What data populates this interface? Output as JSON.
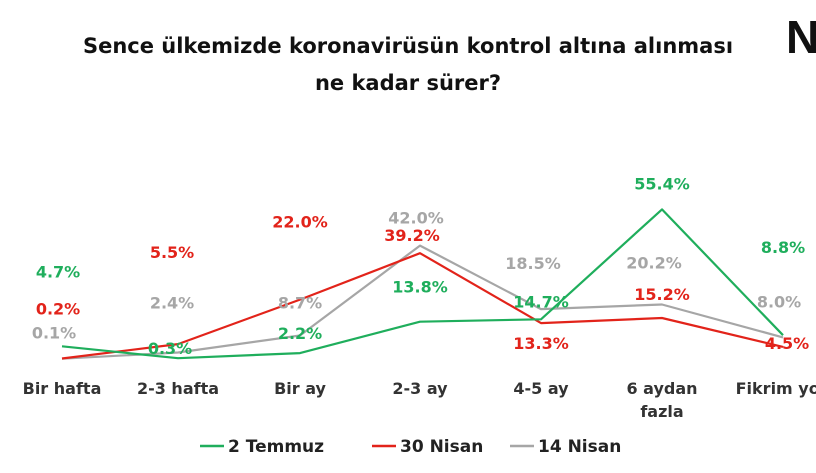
{
  "header": {
    "title_line1": "Sence ülkemizde koronavirüsün kontrol altına alınması",
    "title_line2": "ne kadar sürer?",
    "logo_text": "N"
  },
  "chart_data": {
    "type": "line",
    "title": "Sence ülkemizde koronavirüsün kontrol altına alınması ne kadar sürer?",
    "categories": [
      [
        "Bir hafta"
      ],
      [
        "2-3 hafta"
      ],
      [
        "Bir ay"
      ],
      [
        "2-3 ay"
      ],
      [
        "4-5 ay"
      ],
      [
        "6 aydan",
        "fazla"
      ],
      [
        "Fikrim yok"
      ]
    ],
    "ylim": [
      0,
      60
    ],
    "grid": false,
    "legend_position": "bottom",
    "series": [
      {
        "name": "2 Temmuz",
        "color": "#1fae5c",
        "values": [
          4.7,
          0.3,
          2.2,
          13.8,
          14.7,
          55.4,
          8.8
        ],
        "labels": [
          "4.7%",
          "0.3%",
          "2.2%",
          "13.8%",
          "14.7%",
          "55.4%",
          "8.8%"
        ]
      },
      {
        "name": "30 Nisan",
        "color": "#e2231a",
        "values": [
          0.2,
          5.5,
          22.0,
          39.2,
          13.3,
          15.2,
          4.5
        ],
        "labels": [
          "0.2%",
          "5.5%",
          "22.0%",
          "39.2%",
          "13.3%",
          "15.2%",
          "4.5%"
        ]
      },
      {
        "name": "14 Nisan",
        "color": "#a6a6a6",
        "values": [
          0.1,
          2.4,
          8.7,
          42.0,
          18.5,
          20.2,
          8.0
        ],
        "labels": [
          "0.1%",
          "2.4%",
          "8.7%",
          "42.0%",
          "18.5%",
          "20.2%",
          "8.0%"
        ]
      }
    ]
  }
}
